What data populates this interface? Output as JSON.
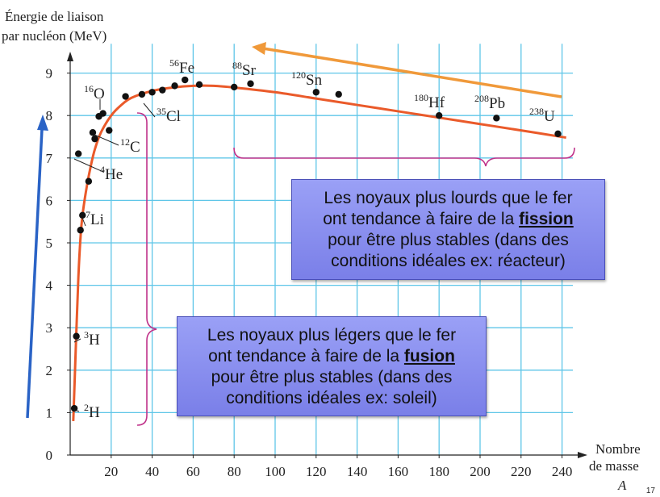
{
  "chart_data": {
    "type": "scatter",
    "ylabel_line1": "Énergie de liaison",
    "ylabel_line2": "par nucléon (MeV)",
    "xlabel_line1": "Nombre",
    "xlabel_line2": "de masse",
    "xlabel_symbol": "A",
    "xlim": [
      0,
      250
    ],
    "ylim": [
      0,
      9.5
    ],
    "xticks": [
      20,
      40,
      60,
      80,
      100,
      120,
      140,
      160,
      180,
      200,
      220,
      240
    ],
    "yticks": [
      0,
      1,
      2,
      3,
      4,
      5,
      6,
      7,
      8,
      9
    ],
    "grid": true,
    "points": [
      {
        "x": 2,
        "y": 1.1
      },
      {
        "x": 3,
        "y": 2.8
      },
      {
        "x": 4,
        "y": 7.1
      },
      {
        "x": 5,
        "y": 5.3
      },
      {
        "x": 6,
        "y": 5.65
      },
      {
        "x": 9,
        "y": 6.45
      },
      {
        "x": 11,
        "y": 7.6
      },
      {
        "x": 12,
        "y": 7.45
      },
      {
        "x": 14,
        "y": 7.98
      },
      {
        "x": 16,
        "y": 8.05
      },
      {
        "x": 19,
        "y": 7.65
      },
      {
        "x": 27,
        "y": 8.45
      },
      {
        "x": 35,
        "y": 8.5
      },
      {
        "x": 40,
        "y": 8.55
      },
      {
        "x": 45,
        "y": 8.6
      },
      {
        "x": 51,
        "y": 8.7
      },
      {
        "x": 56,
        "y": 8.84
      },
      {
        "x": 63,
        "y": 8.73
      },
      {
        "x": 80,
        "y": 8.67
      },
      {
        "x": 88,
        "y": 8.75
      },
      {
        "x": 120,
        "y": 8.55
      },
      {
        "x": 131,
        "y": 8.5
      },
      {
        "x": 180,
        "y": 8.0
      },
      {
        "x": 208,
        "y": 7.94
      },
      {
        "x": 238,
        "y": 7.57
      }
    ],
    "curve": [
      [
        1.5,
        0.8
      ],
      [
        2,
        1.5
      ],
      [
        3,
        2.9
      ],
      [
        4,
        4.2
      ],
      [
        5,
        5.1
      ],
      [
        6,
        5.65
      ],
      [
        8,
        6.3
      ],
      [
        10,
        6.8
      ],
      [
        12,
        7.2
      ],
      [
        15,
        7.6
      ],
      [
        20,
        8.0
      ],
      [
        25,
        8.25
      ],
      [
        30,
        8.42
      ],
      [
        40,
        8.58
      ],
      [
        50,
        8.66
      ],
      [
        60,
        8.7
      ],
      [
        70,
        8.7
      ],
      [
        80,
        8.66
      ],
      [
        100,
        8.55
      ],
      [
        120,
        8.4
      ],
      [
        140,
        8.25
      ],
      [
        160,
        8.1
      ],
      [
        180,
        7.95
      ],
      [
        200,
        7.8
      ],
      [
        220,
        7.65
      ],
      [
        242,
        7.48
      ]
    ],
    "nuclides": [
      {
        "mass": "2",
        "sym": "H"
      },
      {
        "mass": "3",
        "sym": "H"
      },
      {
        "mass": "7",
        "sym": "Li"
      },
      {
        "mass": "4",
        "sym": "He"
      },
      {
        "mass": "12",
        "sym": "C"
      },
      {
        "mass": "16",
        "sym": "O"
      },
      {
        "mass": "35",
        "sym": "Cl"
      },
      {
        "mass": "56",
        "sym": "Fe"
      },
      {
        "mass": "88",
        "sym": "Sr"
      },
      {
        "mass": "120",
        "sym": "Sn"
      },
      {
        "mass": "180",
        "sym": "Hf"
      },
      {
        "mass": "208",
        "sym": "Pb"
      },
      {
        "mass": "238",
        "sym": "U"
      }
    ],
    "colors": {
      "curve": "#ea5a2a",
      "grid": "#5fc6e8",
      "points": "#111111",
      "brace": "#c0328a",
      "arrow_up": "#2a63c6",
      "arrow_orange": "#f0993a"
    }
  },
  "fission_box": {
    "line1": "Les noyaux plus lourds que le fer",
    "line2_pre": "ont tendance à faire de la ",
    "keyword": "fission",
    "line3": "pour être plus stables (dans des",
    "line4": "conditions idéales ex: réacteur)"
  },
  "fusion_box": {
    "line1": "Les noyaux plus légers que le fer",
    "line2_pre": "ont tendance à faire de la ",
    "keyword": "fusion",
    "line3": "pour être plus stables (dans des",
    "line4": "conditions idéales ex: soleil)"
  },
  "page_number": "17"
}
